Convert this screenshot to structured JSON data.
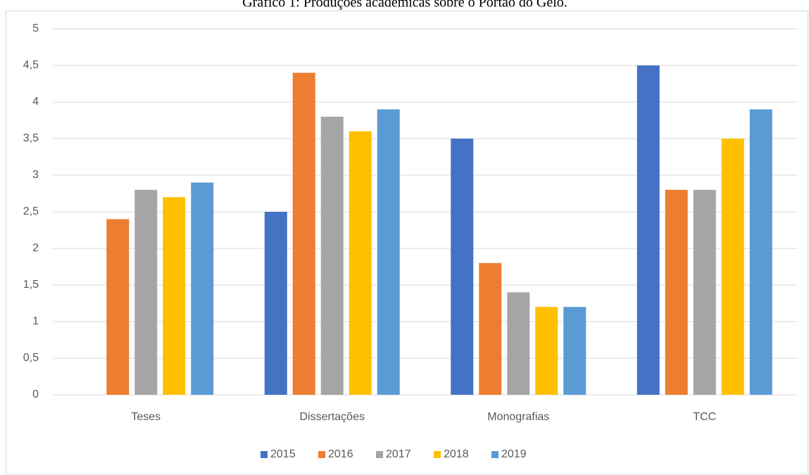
{
  "chart_data": {
    "type": "bar",
    "title": "Gráfico 1: Produções acadêmicas sobre o Portão do Gelo.",
    "categories": [
      "Teses",
      "Dissertações",
      "Monografias",
      "TCC"
    ],
    "series": [
      {
        "name": "2015",
        "color": "#4472c4",
        "values": [
          0,
          2.5,
          3.5,
          4.5
        ]
      },
      {
        "name": "2016",
        "color": "#ed7d31",
        "values": [
          2.4,
          4.4,
          1.8,
          2.8
        ]
      },
      {
        "name": "2017",
        "color": "#a5a5a5",
        "values": [
          2.8,
          3.8,
          1.4,
          2.8
        ]
      },
      {
        "name": "2018",
        "color": "#ffc000",
        "values": [
          2.7,
          3.6,
          1.2,
          3.5
        ]
      },
      {
        "name": "2019",
        "color": "#5b9bd5",
        "values": [
          2.9,
          3.9,
          1.2,
          3.9
        ]
      }
    ],
    "ylim": [
      0,
      5
    ],
    "yticks": [
      0,
      {
        "value": 0.5,
        "label": "0,5"
      },
      1,
      {
        "value": 1.5,
        "label": "1,5"
      },
      2,
      {
        "value": 2.5,
        "label": "2,5"
      },
      3,
      {
        "value": 3.5,
        "label": "3,5"
      },
      4,
      {
        "value": 4.5,
        "label": "4,5"
      },
      5
    ],
    "grid": true,
    "legend": "bottom"
  }
}
